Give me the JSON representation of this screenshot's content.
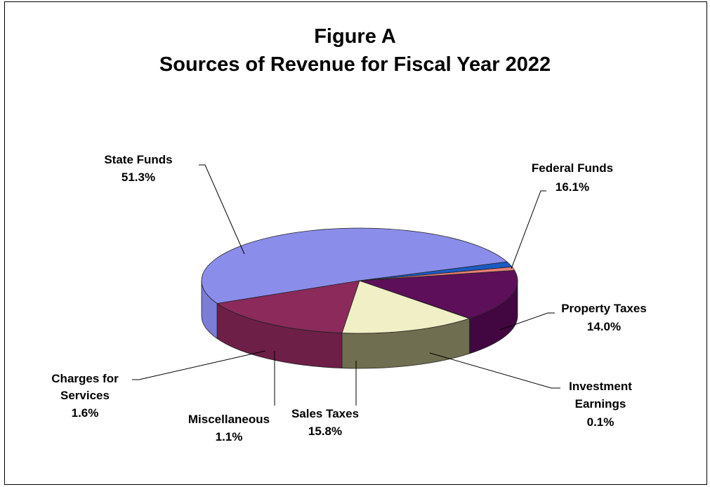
{
  "chart_data": {
    "type": "pie",
    "title": "Figure A",
    "subtitle": "Sources of Revenue for Fiscal Year 2022",
    "slices": [
      {
        "name": "State Funds",
        "value": 51.3,
        "label": "51.3%",
        "color": "#8B8DEB",
        "side": "#7B7DD6"
      },
      {
        "name": "Federal Funds",
        "value": 16.1,
        "label": "16.1%",
        "color": "#8B2A5B",
        "side": "#6E1F47"
      },
      {
        "name": "Property Taxes",
        "value": 14.0,
        "label": "14.0%",
        "color": "#F1EFC6",
        "side": "#6F6E50"
      },
      {
        "name": "Investment Earnings",
        "value": 0.1,
        "label": "0.1%",
        "color": "#2E5C8A",
        "side": "#23486C"
      },
      {
        "name": "Sales Taxes",
        "value": 15.8,
        "label": "15.8%",
        "color": "#5E0F5A",
        "side": "#420741"
      },
      {
        "name": "Miscellaneous",
        "value": 1.1,
        "label": "1.1%",
        "color": "#E87F78",
        "side": "#D46E68"
      },
      {
        "name": "Charges for Services",
        "value": 1.6,
        "label": "1.6%",
        "color": "#1A5BC4",
        "side": "#164DA6"
      }
    ],
    "legend": "none",
    "style": "3d-pie"
  }
}
